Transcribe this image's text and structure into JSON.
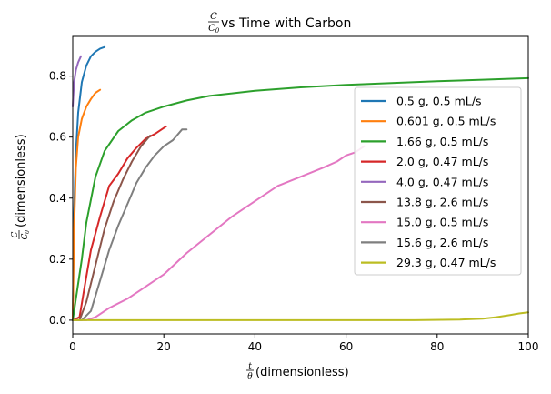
{
  "chart_data": {
    "type": "line",
    "title": {
      "fraction": {
        "num": "C",
        "den": "C",
        "den_sub": "0"
      },
      "text": "vs Time with Carbon"
    },
    "xlabel": {
      "fraction": {
        "num": "t",
        "den": "θ"
      },
      "text": "(dimensionless)"
    },
    "ylabel": {
      "fraction": {
        "num": "C",
        "den": "C",
        "den_sub": "0"
      },
      "text": "(dimensionless)"
    },
    "xlim": [
      0,
      100
    ],
    "ylim": [
      -0.045,
      0.93
    ],
    "xticks": [
      0,
      20,
      40,
      60,
      80,
      100
    ],
    "yticks": [
      0.0,
      0.2,
      0.4,
      0.6,
      0.8
    ],
    "xtick_labels": [
      "0",
      "20",
      "40",
      "60",
      "80",
      "100"
    ],
    "ytick_labels": [
      "0.0",
      "0.2",
      "0.4",
      "0.6",
      "0.8"
    ],
    "grid": false,
    "legend_position": "right",
    "series": [
      {
        "name": "0.5 g, 0.5 mL/s",
        "color": "#1f77b4",
        "x": [
          0,
          0.3,
          0.7,
          1.2,
          2,
          3,
          4,
          5,
          6,
          7
        ],
        "y": [
          0,
          0.35,
          0.55,
          0.68,
          0.78,
          0.835,
          0.865,
          0.88,
          0.89,
          0.895
        ]
      },
      {
        "name": "0.601 g, 0.5 mL/s",
        "color": "#ff7f0e",
        "x": [
          0,
          0.3,
          0.7,
          1.2,
          2,
          3,
          4,
          5,
          6
        ],
        "y": [
          0,
          0.3,
          0.5,
          0.6,
          0.66,
          0.7,
          0.725,
          0.745,
          0.755
        ]
      },
      {
        "name": "1.66 g, 0.5 mL/s",
        "color": "#2ca02c",
        "x": [
          0,
          2,
          3,
          5,
          7,
          10,
          13,
          16,
          20,
          25,
          30,
          40,
          50,
          60,
          70,
          80,
          90,
          100
        ],
        "y": [
          0,
          0.2,
          0.32,
          0.47,
          0.555,
          0.62,
          0.655,
          0.68,
          0.7,
          0.72,
          0.735,
          0.752,
          0.763,
          0.771,
          0.777,
          0.783,
          0.788,
          0.793
        ]
      },
      {
        "name": "2.0 g, 0.47 mL/s",
        "color": "#d62728",
        "x": [
          0,
          1.5,
          2.5,
          4,
          6,
          8,
          10,
          12,
          14,
          16,
          18,
          20.5
        ],
        "y": [
          0,
          0.01,
          0.1,
          0.23,
          0.34,
          0.44,
          0.48,
          0.53,
          0.565,
          0.595,
          0.61,
          0.635
        ]
      },
      {
        "name": "4.0 g, 0.47 mL/s",
        "color": "#9467bd",
        "x": [
          0,
          0.3,
          0.7,
          1.2,
          1.8
        ],
        "y": [
          0.7,
          0.78,
          0.82,
          0.845,
          0.865
        ]
      },
      {
        "name": "13.8 g, 2.6 mL/s",
        "color": "#8c564b",
        "x": [
          0,
          1.5,
          3,
          5,
          7,
          9,
          11,
          13,
          15,
          17
        ],
        "y": [
          0,
          0,
          0.06,
          0.18,
          0.3,
          0.39,
          0.46,
          0.52,
          0.57,
          0.605
        ]
      },
      {
        "name": "15.0 g, 0.5 mL/s",
        "color": "#e377c2",
        "x": [
          0,
          3,
          5,
          8,
          12,
          15,
          20,
          25,
          30,
          35,
          40,
          45,
          50,
          55,
          58,
          60,
          62,
          64
        ],
        "y": [
          0,
          0,
          0.01,
          0.04,
          0.07,
          0.1,
          0.15,
          0.22,
          0.28,
          0.34,
          0.39,
          0.44,
          0.47,
          0.5,
          0.52,
          0.54,
          0.55,
          0.57
        ]
      },
      {
        "name": "15.6 g, 2.6 mL/s",
        "color": "#7f7f7f",
        "x": [
          0,
          2,
          4,
          6,
          8,
          10,
          12,
          14,
          16,
          18,
          20,
          22,
          24,
          25
        ],
        "y": [
          0,
          0,
          0.03,
          0.13,
          0.23,
          0.31,
          0.38,
          0.45,
          0.5,
          0.54,
          0.57,
          0.59,
          0.625,
          0.625
        ]
      },
      {
        "name": "29.3 g, 0.47 mL/s",
        "color": "#bcbd22",
        "x": [
          0,
          20,
          40,
          60,
          75,
          85,
          90,
          93,
          96,
          98,
          100
        ],
        "y": [
          0,
          0,
          0,
          0,
          0,
          0.002,
          0.005,
          0.01,
          0.017,
          0.022,
          0.026
        ]
      }
    ]
  }
}
